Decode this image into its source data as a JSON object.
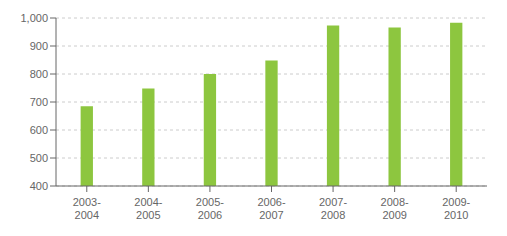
{
  "chart_data": {
    "type": "bar",
    "categories": [
      "2003-\n2004",
      "2004-\n2005",
      "2005-\n2006",
      "2006-\n2007",
      "2007-\n2008",
      "2008-\n2009",
      "2009-\n2010"
    ],
    "values": [
      685,
      748,
      800,
      848,
      973,
      966,
      983
    ],
    "color": "#8dc63f",
    "ylim": [
      400,
      1000
    ],
    "yticks": [
      400,
      500,
      600,
      700,
      800,
      900,
      {
        "value": 1000,
        "label": "1,000"
      }
    ],
    "grid": true
  }
}
